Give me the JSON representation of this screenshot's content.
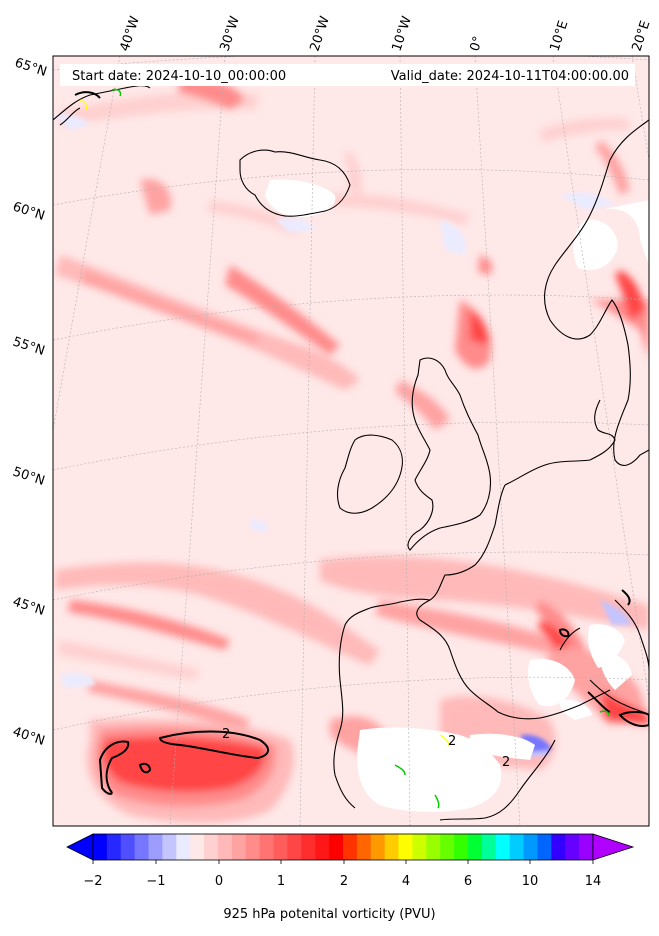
{
  "header": {
    "start_label": "Start date: 2024-10-10_00:00:00",
    "valid_label": "Valid_date: 2024-10-11T04:00:00.00"
  },
  "map": {
    "lon_labels": [
      "40°W",
      "30°W",
      "20°W",
      "10°W",
      "0°",
      "10°E",
      "20°E"
    ],
    "lat_labels": [
      "65°N",
      "60°N",
      "55°N",
      "50°N",
      "45°N",
      "40°N"
    ],
    "contour_labels": [
      "2",
      "2",
      "2"
    ]
  },
  "colorbar": {
    "title": "925 hPa potenital vorticity (PVU)",
    "tick_labels": [
      "−2",
      "−1",
      "0",
      "1",
      "2",
      "4",
      "6",
      "10",
      "14"
    ],
    "colors": [
      "#0000ff",
      "#2727ff",
      "#4f4fff",
      "#7676ff",
      "#9d9dff",
      "#c4c4ff",
      "#ebebff",
      "#ffe8e8",
      "#ffd0d0",
      "#ffb9b9",
      "#ffa2a2",
      "#ff8b8b",
      "#ff7373",
      "#ff5c5c",
      "#ff4545",
      "#ff2e2e",
      "#ff1717",
      "#ff0000",
      "#ff3300",
      "#ff6600",
      "#ff9900",
      "#ffcc00",
      "#ffff00",
      "#ccff00",
      "#99ff00",
      "#66ff00",
      "#33ff00",
      "#00ff33",
      "#00ff99",
      "#00ffff",
      "#00ccff",
      "#0099ff",
      "#0066ff",
      "#3300ff",
      "#6600ff",
      "#9900ff"
    ],
    "extend_low_color": "#0000ff",
    "extend_high_color": "#b000ff"
  }
}
